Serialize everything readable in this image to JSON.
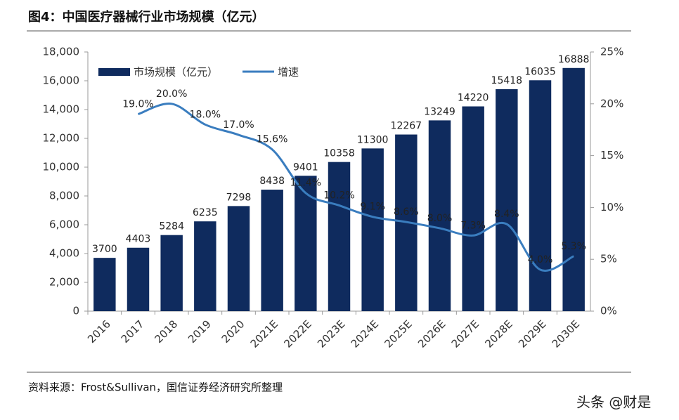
{
  "chart_data": {
    "type": "bar_line",
    "title": "图4：中国医疗器械行业市场规模（亿元）",
    "source": "资料来源：Frost&Sullivan，国信证券经济研究所整理",
    "categories": [
      "2016",
      "2017",
      "2018",
      "2019",
      "2020",
      "2021E",
      "2022E",
      "2023E",
      "2024E",
      "2025E",
      "2026E",
      "2027E",
      "2028E",
      "2029E",
      "2030E"
    ],
    "series": [
      {
        "name": "市场规模（亿元）",
        "type": "bar",
        "color": "#0f2b5e",
        "values": [
          3700,
          4403,
          5284,
          6235,
          7298,
          8438,
          9401,
          10358,
          11300,
          12267,
          13249,
          14220,
          15418,
          16035,
          16888
        ]
      },
      {
        "name": "增速",
        "type": "line",
        "axis": "y2",
        "color": "#3a7dbf",
        "values": [
          null,
          19.0,
          20.0,
          18.0,
          17.0,
          15.6,
          11.4,
          10.2,
          9.1,
          8.6,
          8.0,
          7.3,
          8.4,
          4.0,
          5.3
        ],
        "value_labels": [
          null,
          "19.0%",
          "20.0%",
          "18.0%",
          "17.0%",
          "15.6%",
          "11.4%",
          "10.2%",
          "9.1%",
          "8.6%",
          "8.0%",
          "7.3%",
          "8.4%",
          "4.0%",
          "5.3%"
        ]
      }
    ],
    "ylim": [
      0,
      18000
    ],
    "yticks": [
      0,
      {
        "value": 2000,
        "label": "2,000"
      },
      {
        "value": 4000,
        "label": "4,000"
      },
      {
        "value": 6000,
        "label": "6,000"
      },
      {
        "value": 8000,
        "label": "8,000"
      },
      {
        "value": 10000,
        "label": "10,000"
      },
      {
        "value": 12000,
        "label": "12,000"
      },
      {
        "value": 14000,
        "label": "14,000"
      },
      {
        "value": 16000,
        "label": "16,000"
      },
      {
        "value": 18000,
        "label": "18,000"
      }
    ],
    "y2lim": [
      0,
      25
    ],
    "y2ticks": [
      {
        "value": 0,
        "label": "0%"
      },
      {
        "value": 5,
        "label": "5%"
      },
      {
        "value": 10,
        "label": "10%"
      },
      {
        "value": 15,
        "label": "15%"
      },
      {
        "value": 20,
        "label": "20%"
      },
      {
        "value": 25,
        "label": "25%"
      }
    ],
    "grid": false,
    "legend": "top-left"
  },
  "watermark": "头条 @财是"
}
